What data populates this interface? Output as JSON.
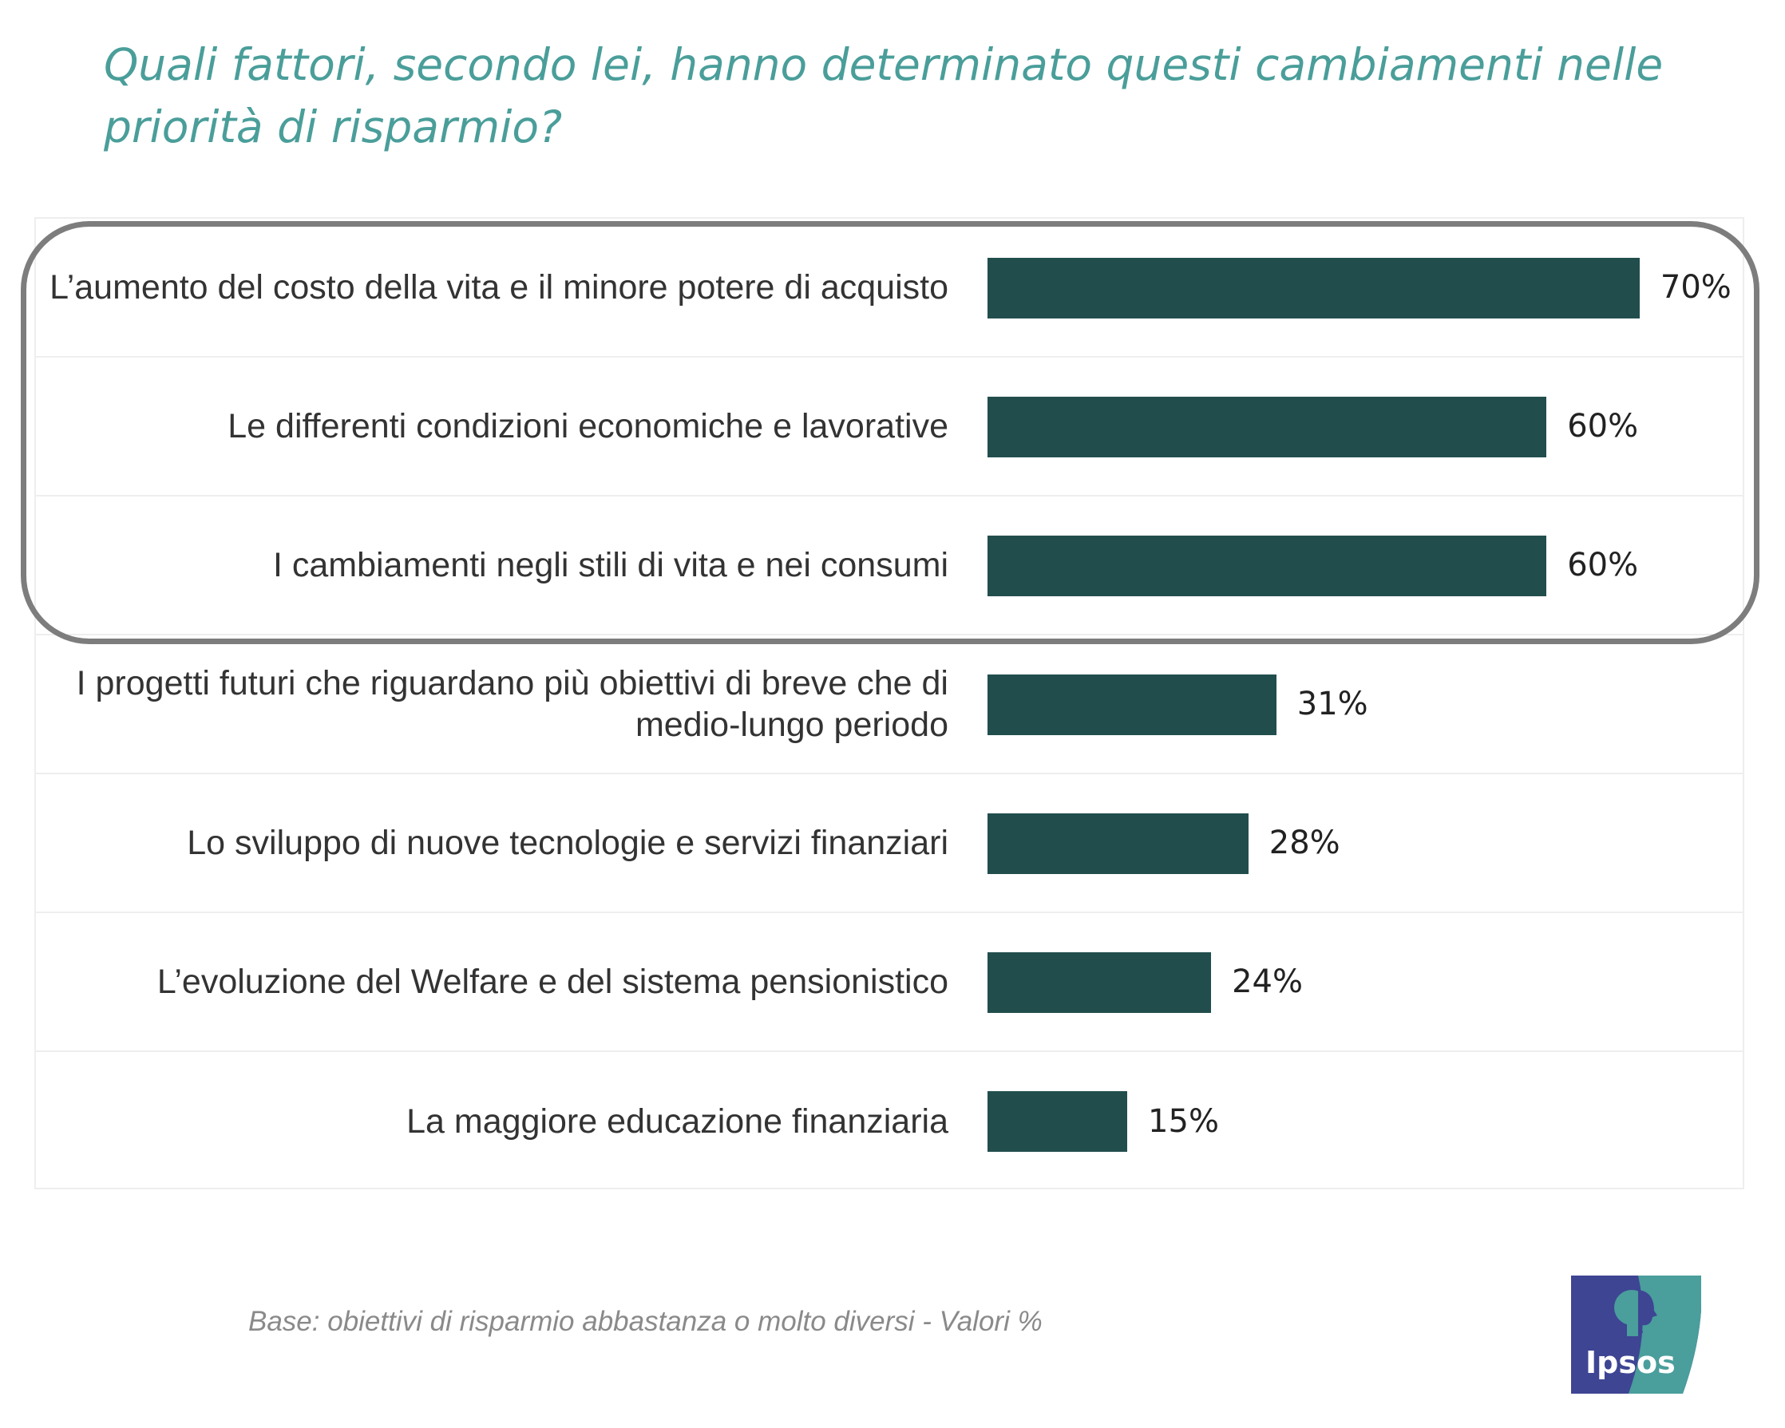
{
  "title": "Quali fattori, secondo lei, hanno determinato questi cambiamenti nelle priorità di risparmio?",
  "footnote": "Base: obiettivi di risparmio abbastanza o molto diversi  - Valori %",
  "logo_text": "Ipsos",
  "colors": {
    "bar": "#214e4d",
    "title": "#4a9e9a",
    "highlight": "#7d7d7d"
  },
  "chart_data": {
    "type": "bar",
    "orientation": "horizontal",
    "title": "Quali fattori, secondo lei, hanno determinato questi cambiamenti nelle priorità di risparmio?",
    "xlabel": "",
    "ylabel": "",
    "xlim": [
      0,
      100
    ],
    "categories": [
      "L’aumento del costo della vita e il minore potere di acquisto",
      "Le differenti condizioni economiche e lavorative",
      "I cambiamenti negli stili di vita e nei consumi",
      "I progetti futuri che riguardano più obiettivi di breve che di medio-lungo periodo",
      "Lo sviluppo di nuove tecnologie e servizi finanziari",
      "L’evoluzione del Welfare e del sistema pensionistico",
      "La maggiore educazione finanziaria"
    ],
    "values": [
      70,
      60,
      60,
      31,
      28,
      24,
      15
    ],
    "value_labels": [
      "70%",
      "60%",
      "60%",
      "31%",
      "28%",
      "24%",
      "15%"
    ],
    "highlighted_categories": [
      0,
      1,
      2
    ]
  }
}
